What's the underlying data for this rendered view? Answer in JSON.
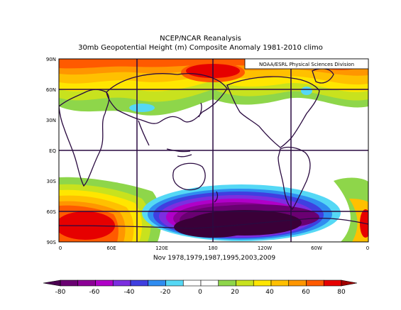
{
  "header": {
    "title": "NCEP/NCAR Reanalysis",
    "subtitle": "30mb Geopotential Height (m) Composite Anomaly 1981-2010 climo",
    "credit": "NOAA/ESRL Physical Sciences Division"
  },
  "map": {
    "lat_labels": [
      "90N",
      "60N",
      "30N",
      "EQ",
      "30S",
      "60S",
      "90S"
    ],
    "lon_labels": [
      "0",
      "60E",
      "120E",
      "180",
      "120W",
      "60W",
      "0"
    ],
    "composite_years_label": "Nov 1978,1979,1987,1995,2003,2009",
    "anomaly_field": [
      {
        "region": "north polar band",
        "level_m": 60
      },
      {
        "region": "Siberia / North Pacific",
        "level_m": 80
      },
      {
        "region": "South Pacific high latitudes",
        "level_m": -80
      },
      {
        "region": "South Atlantic / Indian high latitudes",
        "level_m": 80
      },
      {
        "region": "Eastern Asia small pool",
        "level_m": -20
      },
      {
        "region": "Canada small pool",
        "level_m": -20
      }
    ]
  },
  "colorbar": {
    "labels": [
      "-80",
      "-60",
      "-40",
      "-20",
      "0",
      "20",
      "40",
      "60",
      "80"
    ],
    "colors": [
      "#6a0072",
      "#8c0096",
      "#b000c8",
      "#7c2ee0",
      "#3f3fe0",
      "#2f8cf0",
      "#55d8f5",
      "#ffffff",
      "#ffffff",
      "#8ed64a",
      "#c8e21e",
      "#ffe600",
      "#ffc000",
      "#ff9600",
      "#ff5a00",
      "#e60000"
    ]
  }
}
